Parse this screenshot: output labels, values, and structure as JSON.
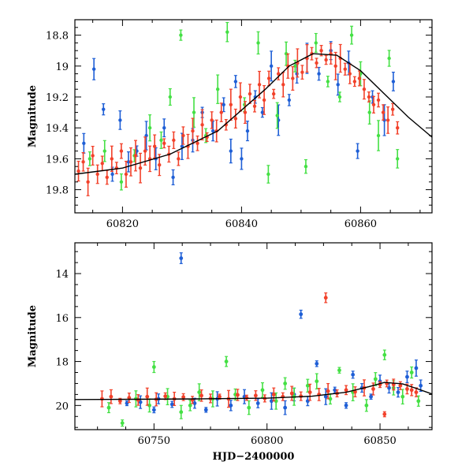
{
  "chart_data": [
    {
      "type": "scatter",
      "title": "",
      "xlabel": "",
      "ylabel": "Magnitude",
      "xlim": [
        60812,
        60872
      ],
      "ylim": [
        19.95,
        18.7
      ],
      "y_inverted": true,
      "x_ticks": [
        60820,
        60840,
        60860
      ],
      "x_tick_labels": [
        "60820",
        "60840",
        "60860"
      ],
      "y_ticks": [
        18.8,
        19,
        19.2,
        19.4,
        19.6,
        19.8
      ],
      "y_tick_labels": [
        "18.8",
        "19",
        "19.2",
        "19.4",
        "19.6",
        "19.8"
      ],
      "grid": false,
      "legend": "none",
      "colors": {
        "blue": "#1f5fd6",
        "green": "#44e044",
        "red": "#f2412a",
        "curve": "#000000"
      },
      "series": [
        {
          "color": "blue",
          "points": [
            [
              60813.5,
              19.5
            ],
            [
              60815.2,
              19.02
            ],
            [
              60816.8,
              19.28
            ],
            [
              60818.3,
              19.7
            ],
            [
              60819.6,
              19.35
            ],
            [
              60821.0,
              19.62
            ],
            [
              60822.4,
              19.55
            ],
            [
              60824.0,
              19.45
            ],
            [
              60825.6,
              19.6
            ],
            [
              60827.0,
              19.4
            ],
            [
              60828.5,
              19.72
            ],
            [
              60830.0,
              19.52
            ],
            [
              60831.8,
              19.48
            ],
            [
              60833.4,
              19.3
            ],
            [
              60835.2,
              19.42
            ],
            [
              60837.0,
              19.25
            ],
            [
              60838.2,
              19.55
            ],
            [
              60839.0,
              19.1
            ],
            [
              60840.0,
              19.6
            ],
            [
              60841.0,
              19.42
            ],
            [
              60842.3,
              19.2
            ],
            [
              60843.5,
              19.3
            ],
            [
              60845.0,
              19.0
            ],
            [
              60846.2,
              19.35
            ],
            [
              60848.0,
              19.22
            ],
            [
              60849.3,
              19.05
            ],
            [
              60851.0,
              18.95
            ],
            [
              60853.0,
              19.05
            ],
            [
              60855.0,
              18.9
            ],
            [
              60856.2,
              19.12
            ],
            [
              60858.0,
              18.98
            ],
            [
              60859.5,
              19.55
            ],
            [
              60862.0,
              19.2
            ],
            [
              60864.0,
              19.35
            ],
            [
              60865.5,
              19.1
            ]
          ]
        },
        {
          "color": "green",
          "points": [
            [
              60814.5,
              19.6
            ],
            [
              60817.0,
              19.55
            ],
            [
              60819.8,
              19.75
            ],
            [
              60822.0,
              19.58
            ],
            [
              60824.6,
              19.4
            ],
            [
              60826.5,
              19.48
            ],
            [
              60828.0,
              19.2
            ],
            [
              60829.8,
              18.8
            ],
            [
              60832.0,
              19.3
            ],
            [
              60834.0,
              19.45
            ],
            [
              60836.0,
              19.15
            ],
            [
              60837.6,
              18.78
            ],
            [
              60840.5,
              19.25
            ],
            [
              60842.8,
              18.85
            ],
            [
              60844.5,
              19.7
            ],
            [
              60846.0,
              19.32
            ],
            [
              60847.5,
              18.92
            ],
            [
              60849.0,
              19.0
            ],
            [
              60850.8,
              19.65
            ],
            [
              60852.5,
              18.85
            ],
            [
              60854.5,
              19.1
            ],
            [
              60856.5,
              19.2
            ],
            [
              60858.5,
              18.8
            ],
            [
              60860.0,
              19.05
            ],
            [
              60861.5,
              19.3
            ],
            [
              60863.0,
              19.45
            ],
            [
              60864.8,
              18.95
            ],
            [
              60866.2,
              19.6
            ]
          ]
        },
        {
          "color": "red",
          "points": [
            [
              60812.6,
              19.68
            ],
            [
              60813.4,
              19.62
            ],
            [
              60814.2,
              19.75
            ],
            [
              60815.0,
              19.58
            ],
            [
              60815.8,
              19.7
            ],
            [
              60816.6,
              19.63
            ],
            [
              60817.4,
              19.72
            ],
            [
              60818.2,
              19.6
            ],
            [
              60819.0,
              19.66
            ],
            [
              60819.8,
              19.55
            ],
            [
              60820.6,
              19.7
            ],
            [
              60821.4,
              19.62
            ],
            [
              60822.2,
              19.58
            ],
            [
              60823.0,
              19.66
            ],
            [
              60823.8,
              19.55
            ],
            [
              60824.6,
              19.6
            ],
            [
              60825.4,
              19.52
            ],
            [
              60826.2,
              19.64
            ],
            [
              60827.0,
              19.5
            ],
            [
              60827.8,
              19.57
            ],
            [
              60828.6,
              19.48
            ],
            [
              60829.4,
              19.6
            ],
            [
              60830.2,
              19.45
            ],
            [
              60831.0,
              19.52
            ],
            [
              60831.8,
              19.42
            ],
            [
              60832.6,
              19.5
            ],
            [
              60833.4,
              19.38
            ],
            [
              60834.2,
              19.46
            ],
            [
              60835.0,
              19.35
            ],
            [
              60835.8,
              19.42
            ],
            [
              60836.6,
              19.3
            ],
            [
              60837.4,
              19.38
            ],
            [
              60838.2,
              19.25
            ],
            [
              60839.0,
              19.34
            ],
            [
              60839.8,
              19.2
            ],
            [
              60840.6,
              19.3
            ],
            [
              60841.4,
              19.18
            ],
            [
              60842.2,
              19.26
            ],
            [
              60843.0,
              19.12
            ],
            [
              60843.8,
              19.22
            ],
            [
              60844.6,
              19.08
            ],
            [
              60845.4,
              19.18
            ],
            [
              60846.2,
              19.05
            ],
            [
              60847.0,
              19.12
            ],
            [
              60847.8,
              19.0
            ],
            [
              60848.6,
              19.08
            ],
            [
              60849.4,
              18.98
            ],
            [
              60850.2,
              19.04
            ],
            [
              60851.0,
              18.95
            ],
            [
              60851.8,
              18.92
            ],
            [
              60852.6,
              18.98
            ],
            [
              60853.4,
              18.9
            ],
            [
              60854.2,
              18.96
            ],
            [
              60855.0,
              18.92
            ],
            [
              60855.8,
              19.0
            ],
            [
              60856.6,
              18.95
            ],
            [
              60857.4,
              19.02
            ],
            [
              60858.2,
              19.05
            ],
            [
              60859.0,
              19.1
            ],
            [
              60859.8,
              19.08
            ],
            [
              60860.6,
              19.15
            ],
            [
              60861.4,
              19.2
            ],
            [
              60862.2,
              19.25
            ],
            [
              60863.0,
              19.22
            ],
            [
              60863.8,
              19.3
            ],
            [
              60864.6,
              19.35
            ],
            [
              60865.4,
              19.28
            ],
            [
              60866.2,
              19.4
            ]
          ]
        }
      ],
      "curve": {
        "description": "model light curve",
        "x": [
          60812,
          60820,
          60828,
          60836,
          60844,
          60848,
          60852,
          60856,
          60860,
          60864,
          60868,
          60872
        ],
        "y": [
          19.7,
          19.66,
          19.57,
          19.42,
          19.15,
          19.0,
          18.92,
          18.93,
          19.03,
          19.18,
          19.33,
          19.46
        ]
      }
    },
    {
      "type": "scatter",
      "title": "",
      "xlabel": "HJD−2400000",
      "ylabel": "Magnitude",
      "xlim": [
        60715,
        60873
      ],
      "ylim": [
        21.1,
        12.6
      ],
      "y_inverted": true,
      "x_ticks": [
        60750,
        60800,
        60850
      ],
      "x_tick_labels": [
        "60750",
        "60800",
        "60850"
      ],
      "y_ticks": [
        14,
        16,
        18,
        20
      ],
      "y_tick_labels": [
        "14",
        "16",
        "18",
        "20"
      ],
      "grid": false,
      "legend": "none",
      "colors": {
        "blue": "#1f5fd6",
        "green": "#44e044",
        "red": "#f2412a",
        "curve": "#000000"
      },
      "series": [
        {
          "color": "blue",
          "points": [
            [
              60738,
              19.9
            ],
            [
              60744,
              19.85
            ],
            [
              60750,
              20.2
            ],
            [
              60752,
              19.7
            ],
            [
              60758,
              19.95
            ],
            [
              60762,
              13.3
            ],
            [
              60768,
              19.9
            ],
            [
              60773,
              20.2
            ],
            [
              60778,
              19.7
            ],
            [
              60784,
              20.0
            ],
            [
              60790,
              19.6
            ],
            [
              60796,
              19.9
            ],
            [
              60802,
              19.8
            ],
            [
              60808,
              20.1
            ],
            [
              60812,
              19.5
            ],
            [
              60815,
              15.85
            ],
            [
              60818,
              19.8
            ],
            [
              60822,
              18.1
            ],
            [
              60826,
              19.6
            ],
            [
              60830,
              19.3
            ],
            [
              60835,
              20.0
            ],
            [
              60838,
              18.6
            ],
            [
              60842,
              19.2
            ],
            [
              60846,
              19.6
            ],
            [
              60850,
              18.9
            ],
            [
              60854,
              19.2
            ],
            [
              60858,
              19.4
            ],
            [
              60862,
              18.7
            ],
            [
              60866,
              18.3
            ],
            [
              60868,
              19.1
            ]
          ]
        },
        {
          "color": "green",
          "points": [
            [
              60730,
              20.1
            ],
            [
              60736,
              20.8
            ],
            [
              60742,
              19.7
            ],
            [
              60748,
              20.0
            ],
            [
              60750,
              18.25
            ],
            [
              60756,
              19.6
            ],
            [
              60762,
              20.3
            ],
            [
              60766,
              20.0
            ],
            [
              60770,
              19.4
            ],
            [
              60776,
              19.7
            ],
            [
              60782,
              18.0
            ],
            [
              60786,
              19.5
            ],
            [
              60792,
              20.1
            ],
            [
              60798,
              19.3
            ],
            [
              60804,
              19.8
            ],
            [
              60808,
              19.0
            ],
            [
              60812,
              19.6
            ],
            [
              60818,
              19.1
            ],
            [
              60822,
              18.9
            ],
            [
              60828,
              19.7
            ],
            [
              60832,
              18.4
            ],
            [
              60838,
              19.4
            ],
            [
              60844,
              20.0
            ],
            [
              60848,
              18.8
            ],
            [
              60852,
              17.7
            ],
            [
              60856,
              19.2
            ],
            [
              60860,
              19.6
            ],
            [
              60864,
              18.5
            ],
            [
              60867,
              19.8
            ]
          ]
        },
        {
          "color": "red",
          "points": [
            [
              60727,
              19.7
            ],
            [
              60731,
              19.6
            ],
            [
              60735,
              19.8
            ],
            [
              60739,
              19.65
            ],
            [
              60743,
              19.75
            ],
            [
              60747,
              19.6
            ],
            [
              60751,
              19.72
            ],
            [
              60755,
              19.58
            ],
            [
              60759,
              19.7
            ],
            [
              60763,
              19.62
            ],
            [
              60767,
              19.75
            ],
            [
              60771,
              19.55
            ],
            [
              60775,
              19.68
            ],
            [
              60779,
              19.6
            ],
            [
              60783,
              19.7
            ],
            [
              60787,
              19.52
            ],
            [
              60791,
              19.65
            ],
            [
              60795,
              19.55
            ],
            [
              60799,
              19.68
            ],
            [
              60803,
              19.5
            ],
            [
              60807,
              19.6
            ],
            [
              60811,
              19.45
            ],
            [
              60815,
              19.58
            ],
            [
              60819,
              19.4
            ],
            [
              60823,
              19.5
            ],
            [
              60826,
              15.1
            ],
            [
              60827,
              19.35
            ],
            [
              60831,
              19.45
            ],
            [
              60835,
              19.3
            ],
            [
              60839,
              19.38
            ],
            [
              60843,
              19.2
            ],
            [
              60847,
              19.25
            ],
            [
              60850,
              19.05
            ],
            [
              60853,
              19.0
            ],
            [
              60856,
              19.05
            ],
            [
              60859,
              19.1
            ],
            [
              60862,
              19.25
            ],
            [
              60864,
              19.3
            ],
            [
              60866,
              19.4
            ],
            [
              60852,
              20.4
            ]
          ]
        }
      ],
      "curve": {
        "description": "model light curve",
        "x": [
          60715,
          60740,
          60770,
          60800,
          60820,
          60835,
          60845,
          60852,
          60860,
          60866,
          60873
        ],
        "y": [
          19.73,
          19.72,
          19.7,
          19.67,
          19.58,
          19.4,
          19.15,
          18.95,
          19.02,
          19.22,
          19.48
        ]
      }
    }
  ]
}
